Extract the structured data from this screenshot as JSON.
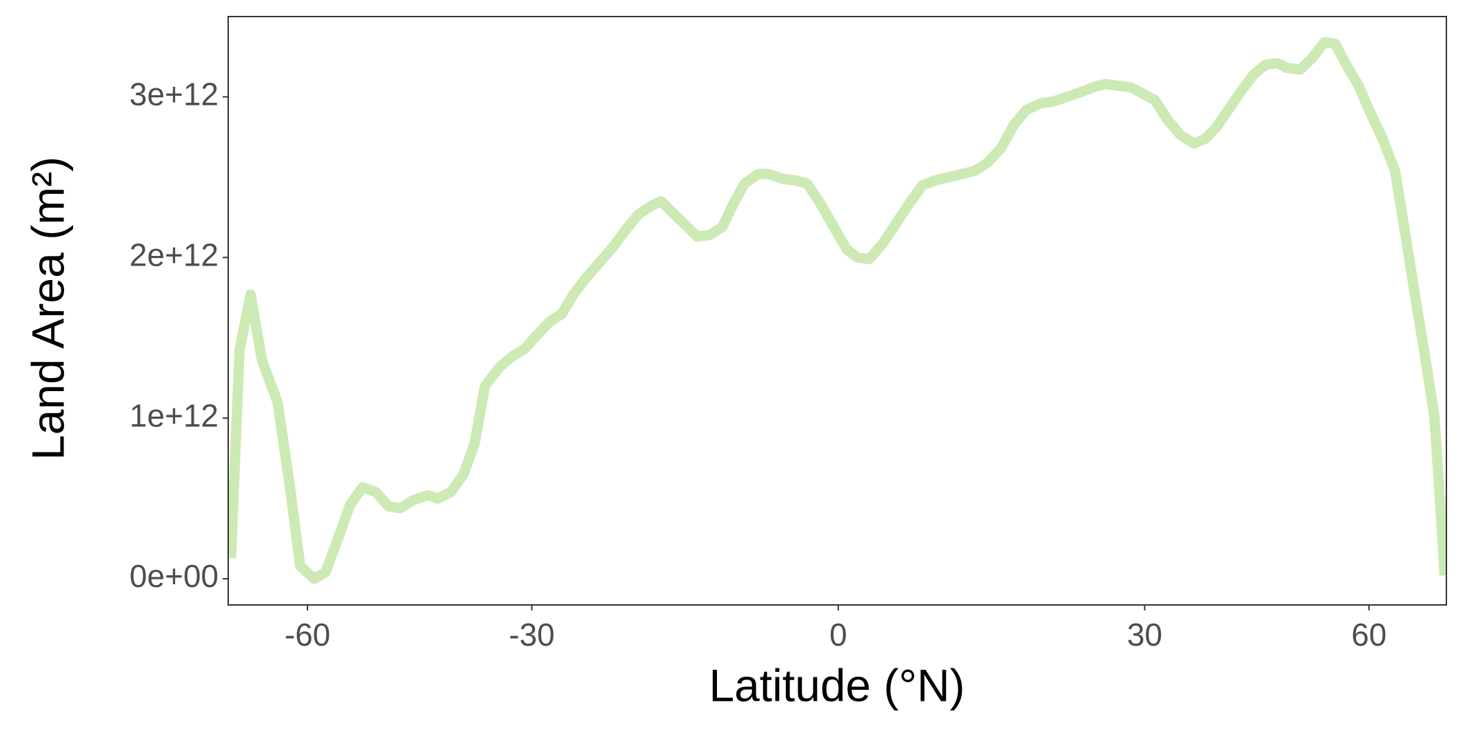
{
  "chart_data": {
    "type": "line",
    "x_label": "Latitude (°N)",
    "y_label": "Land Area (m²)",
    "xscale": "sine",
    "xlim": [
      -84.5,
      82.9
    ],
    "ylim": [
      -163000000000.0,
      3500000000000.0
    ],
    "xticks": [
      -60,
      -30,
      0,
      30,
      60
    ],
    "yticks": [
      {
        "value": 0,
        "label": "0e+00"
      },
      {
        "value": 1000000000000.0,
        "label": "1e+12"
      },
      {
        "value": 2000000000000.0,
        "label": "2e+12"
      },
      {
        "value": 3000000000000.0,
        "label": "3e+12"
      }
    ],
    "grid": false,
    "x": [
      -82.2,
      -77.7,
      -73.5,
      -70.1,
      -66.2,
      -63.5,
      -61.4,
      -58.8,
      -56.8,
      -54.9,
      -52.8,
      -50.9,
      -49.0,
      -47.2,
      -45.6,
      -43.9,
      -42.1,
      -40.8,
      -39.2,
      -37.7,
      -36.4,
      -35.2,
      -33.5,
      -32.0,
      -30.8,
      -29.4,
      -28.1,
      -26.8,
      -25.6,
      -24.2,
      -22.9,
      -21.5,
      -20.2,
      -19.0,
      -17.8,
      -16.8,
      -15.7,
      -14.4,
      -13.3,
      -12.1,
      -10.9,
      -9.8,
      -8.8,
      -7.5,
      -6.5,
      -5.2,
      -4.0,
      -2.9,
      -1.7,
      -0.5,
      0.8,
      1.8,
      2.9,
      4.2,
      5.4,
      6.7,
      7.9,
      9.1,
      10.4,
      11.7,
      12.9,
      14.1,
      15.4,
      16.7,
      17.9,
      19.3,
      20.5,
      21.9,
      23.3,
      24.6,
      25.8,
      27.1,
      28.5,
      29.8,
      31.1,
      32.6,
      34.0,
      35.5,
      36.8,
      38.1,
      39.8,
      41.3,
      42.7,
      44.2,
      45.8,
      47.1,
      48.9,
      50.6,
      52.5,
      54.2,
      56.0,
      58.1,
      60.0,
      62.5,
      65.3,
      67.5,
      70.2,
      73.2,
      76.6,
      80.5,
      81.6
    ],
    "series": [
      {
        "color": "#cdeab5",
        "values": [
          130000000000.0,
          1420000000000.0,
          1770000000000.0,
          1360000000000.0,
          1100000000000.0,
          580000000000.0,
          80000000000.0,
          0.0,
          40000000000.0,
          230000000000.0,
          460000000000.0,
          570000000000.0,
          540000000000.0,
          450000000000.0,
          440000000000.0,
          490000000000.0,
          520000000000.0,
          500000000000.0,
          540000000000.0,
          650000000000.0,
          840000000000.0,
          1200000000000.0,
          1320000000000.0,
          1390000000000.0,
          1430000000000.0,
          1520000000000.0,
          1600000000000.0,
          1650000000000.0,
          1770000000000.0,
          1880000000000.0,
          1970000000000.0,
          2070000000000.0,
          2180000000000.0,
          2270000000000.0,
          2320000000000.0,
          2350000000000.0,
          2280000000000.0,
          2200000000000.0,
          2130000000000.0,
          2140000000000.0,
          2190000000000.0,
          2340000000000.0,
          2460000000000.0,
          2520000000000.0,
          2520000000000.0,
          2490000000000.0,
          2480000000000.0,
          2460000000000.0,
          2340000000000.0,
          2200000000000.0,
          2050000000000.0,
          2000000000000.0,
          1990000000000.0,
          2090000000000.0,
          2210000000000.0,
          2340000000000.0,
          2450000000000.0,
          2480000000000.0,
          2500000000000.0,
          2520000000000.0,
          2540000000000.0,
          2590000000000.0,
          2680000000000.0,
          2830000000000.0,
          2920000000000.0,
          2960000000000.0,
          2970000000000.0,
          3000000000000.0,
          3030000000000.0,
          3060000000000.0,
          3080000000000.0,
          3070000000000.0,
          3060000000000.0,
          3020000000000.0,
          2980000000000.0,
          2850000000000.0,
          2760000000000.0,
          2710000000000.0,
          2740000000000.0,
          2810000000000.0,
          2940000000000.0,
          3050000000000.0,
          3140000000000.0,
          3200000000000.0,
          3210000000000.0,
          3180000000000.0,
          3170000000000.0,
          3240000000000.0,
          3340000000000.0,
          3330000000000.0,
          3200000000000.0,
          3070000000000.0,
          2920000000000.0,
          2750000000000.0,
          2540000000000.0,
          2180000000000.0,
          1770000000000.0,
          1390000000000.0,
          1010000000000.0,
          230000000000.0,
          20000000000.0
        ]
      }
    ]
  }
}
